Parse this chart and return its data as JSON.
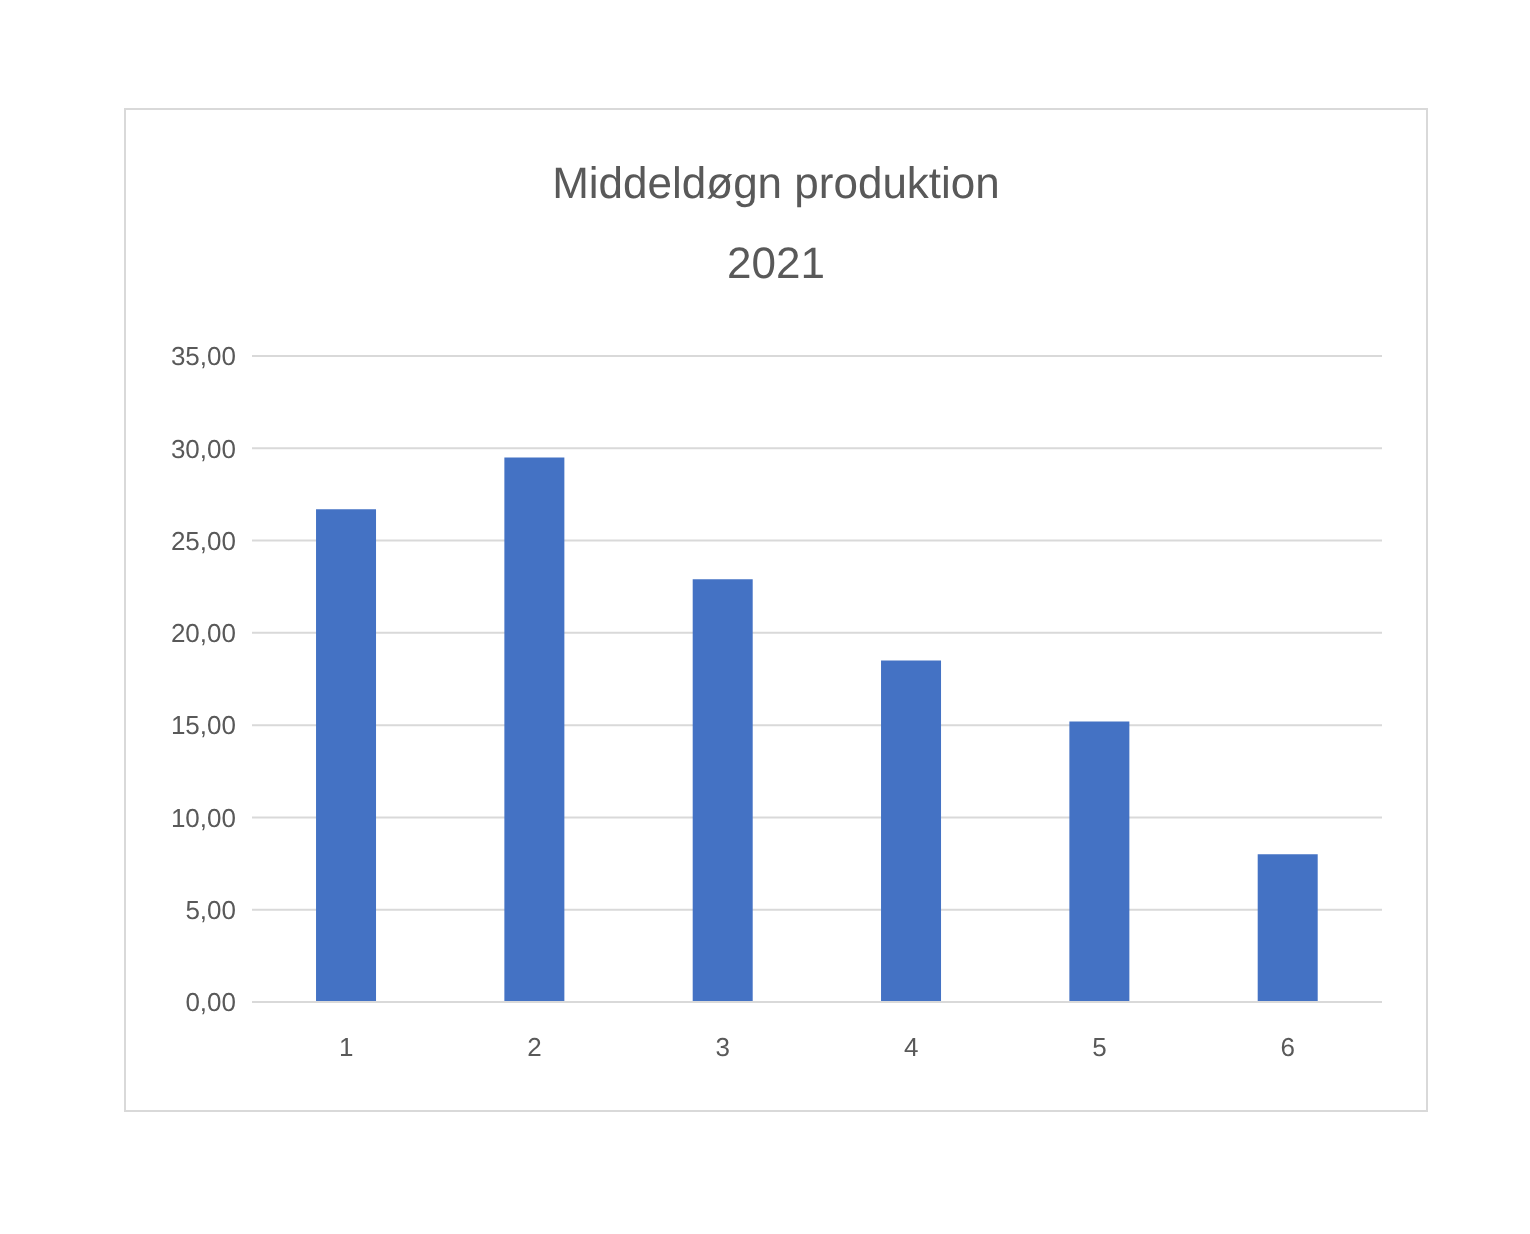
{
  "chart_data": {
    "type": "bar",
    "title": "Middeldøgn produktion",
    "subtitle": "2021",
    "categories": [
      "1",
      "2",
      "3",
      "4",
      "5",
      "6"
    ],
    "values": [
      26.7,
      29.5,
      22.9,
      18.5,
      15.2,
      8.0
    ],
    "color": "#4472c4",
    "ylim": [
      0,
      35
    ],
    "yticks": [
      {
        "value": 0,
        "label": "0,00"
      },
      {
        "value": 5,
        "label": "5,00"
      },
      {
        "value": 10,
        "label": "10,00"
      },
      {
        "value": 15,
        "label": "15,00"
      },
      {
        "value": 20,
        "label": "20,00"
      },
      {
        "value": 25,
        "label": "25,00"
      },
      {
        "value": 30,
        "label": "30,00"
      },
      {
        "value": 35,
        "label": "35,00"
      }
    ],
    "grid": "y"
  }
}
